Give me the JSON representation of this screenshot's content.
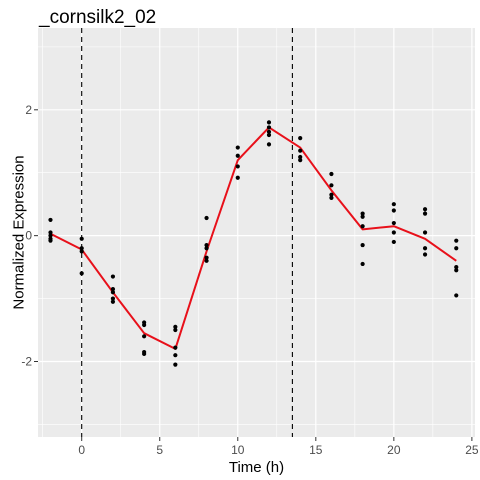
{
  "chart_data": {
    "type": "line",
    "title": "_cornsilk2_02",
    "xlabel": "Time (h)",
    "ylabel": "Normalized Expression",
    "xlim": [
      -2.8,
      25.2
    ],
    "ylim": [
      -3.2,
      3.3
    ],
    "x_ticks": [
      0,
      5,
      10,
      15,
      20,
      25
    ],
    "y_ticks": [
      -2,
      0,
      2
    ],
    "x_tick_labels": [
      "0",
      "5",
      "10",
      "15",
      "20",
      "25"
    ],
    "y_tick_labels": [
      "-2",
      "0",
      "2"
    ],
    "grid": true,
    "vlines": [
      0,
      13.5
    ],
    "series": [
      {
        "kind": "points",
        "color": "#000000",
        "x": [
          -2,
          -2,
          -2,
          -2,
          -2,
          0,
          0,
          0,
          0,
          2,
          2,
          2,
          2,
          2,
          4,
          4,
          4,
          4,
          4,
          6,
          6,
          6,
          6,
          6,
          8,
          8,
          8,
          8,
          8,
          10,
          10,
          10,
          10,
          12,
          12,
          12,
          12,
          12,
          14,
          14,
          14,
          14,
          16,
          16,
          16,
          16,
          18,
          18,
          18,
          18,
          18,
          20,
          20,
          20,
          20,
          20,
          22,
          22,
          22,
          22,
          22,
          24,
          24,
          24,
          24,
          24
        ],
        "y": [
          0.25,
          0.05,
          0.0,
          -0.05,
          -0.08,
          -0.05,
          -0.2,
          -0.25,
          -0.6,
          -0.65,
          -0.85,
          -0.9,
          -1.0,
          -1.05,
          -1.38,
          -1.42,
          -1.6,
          -1.85,
          -1.88,
          -1.45,
          -1.5,
          -1.78,
          -1.9,
          -2.05,
          0.28,
          -0.15,
          -0.2,
          -0.35,
          -0.4,
          1.4,
          1.27,
          1.1,
          0.92,
          1.8,
          1.72,
          1.65,
          1.6,
          1.45,
          1.55,
          1.35,
          1.25,
          1.2,
          0.98,
          0.8,
          0.65,
          0.6,
          0.35,
          0.3,
          0.15,
          -0.15,
          -0.45,
          0.5,
          0.4,
          0.2,
          0.05,
          -0.1,
          0.42,
          0.35,
          0.05,
          -0.2,
          -0.3,
          -0.08,
          -0.2,
          -0.5,
          -0.55,
          -0.95
        ]
      },
      {
        "kind": "line",
        "color": "#e8101a",
        "x": [
          -2,
          0,
          2,
          4,
          6,
          8,
          10,
          12,
          14,
          16,
          18,
          20,
          22,
          24
        ],
        "y": [
          0.03,
          -0.22,
          -0.9,
          -1.55,
          -1.8,
          -0.25,
          1.2,
          1.72,
          1.4,
          0.72,
          0.1,
          0.15,
          -0.05,
          -0.4
        ]
      }
    ]
  }
}
